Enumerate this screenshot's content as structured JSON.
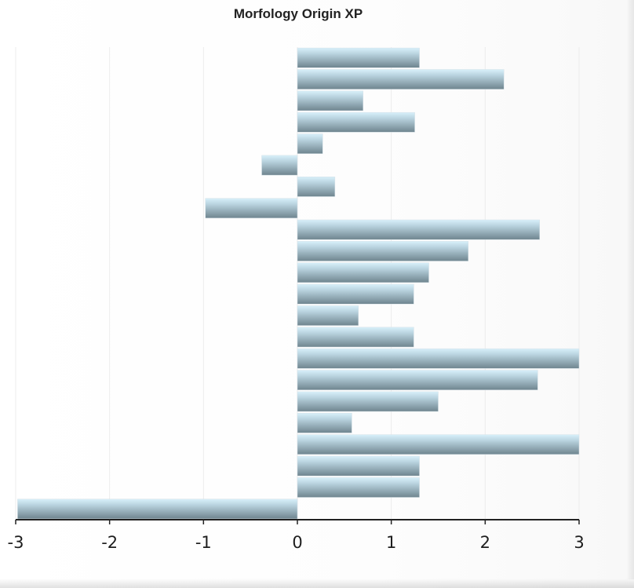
{
  "chart_data": {
    "type": "bar",
    "orientation": "horizontal",
    "title": "Morfology Origin XP",
    "xlabel": "",
    "ylabel": "",
    "xlim": [
      -3,
      3
    ],
    "xticks": [
      "-3",
      "-2",
      "-1",
      "0",
      "1",
      "2",
      "3"
    ],
    "grid": "vertical",
    "legend": "none",
    "bar_colors": {
      "highlight": "#d8f0fa",
      "mid": "#b9d3df",
      "shadow": "#6f858f"
    },
    "values": [
      1.3,
      2.2,
      0.7,
      1.25,
      0.27,
      -0.38,
      0.4,
      -0.98,
      2.58,
      1.82,
      1.4,
      1.24,
      0.65,
      1.24,
      3.0,
      2.56,
      1.5,
      0.58,
      3.0,
      1.3,
      1.3,
      -2.98
    ]
  }
}
